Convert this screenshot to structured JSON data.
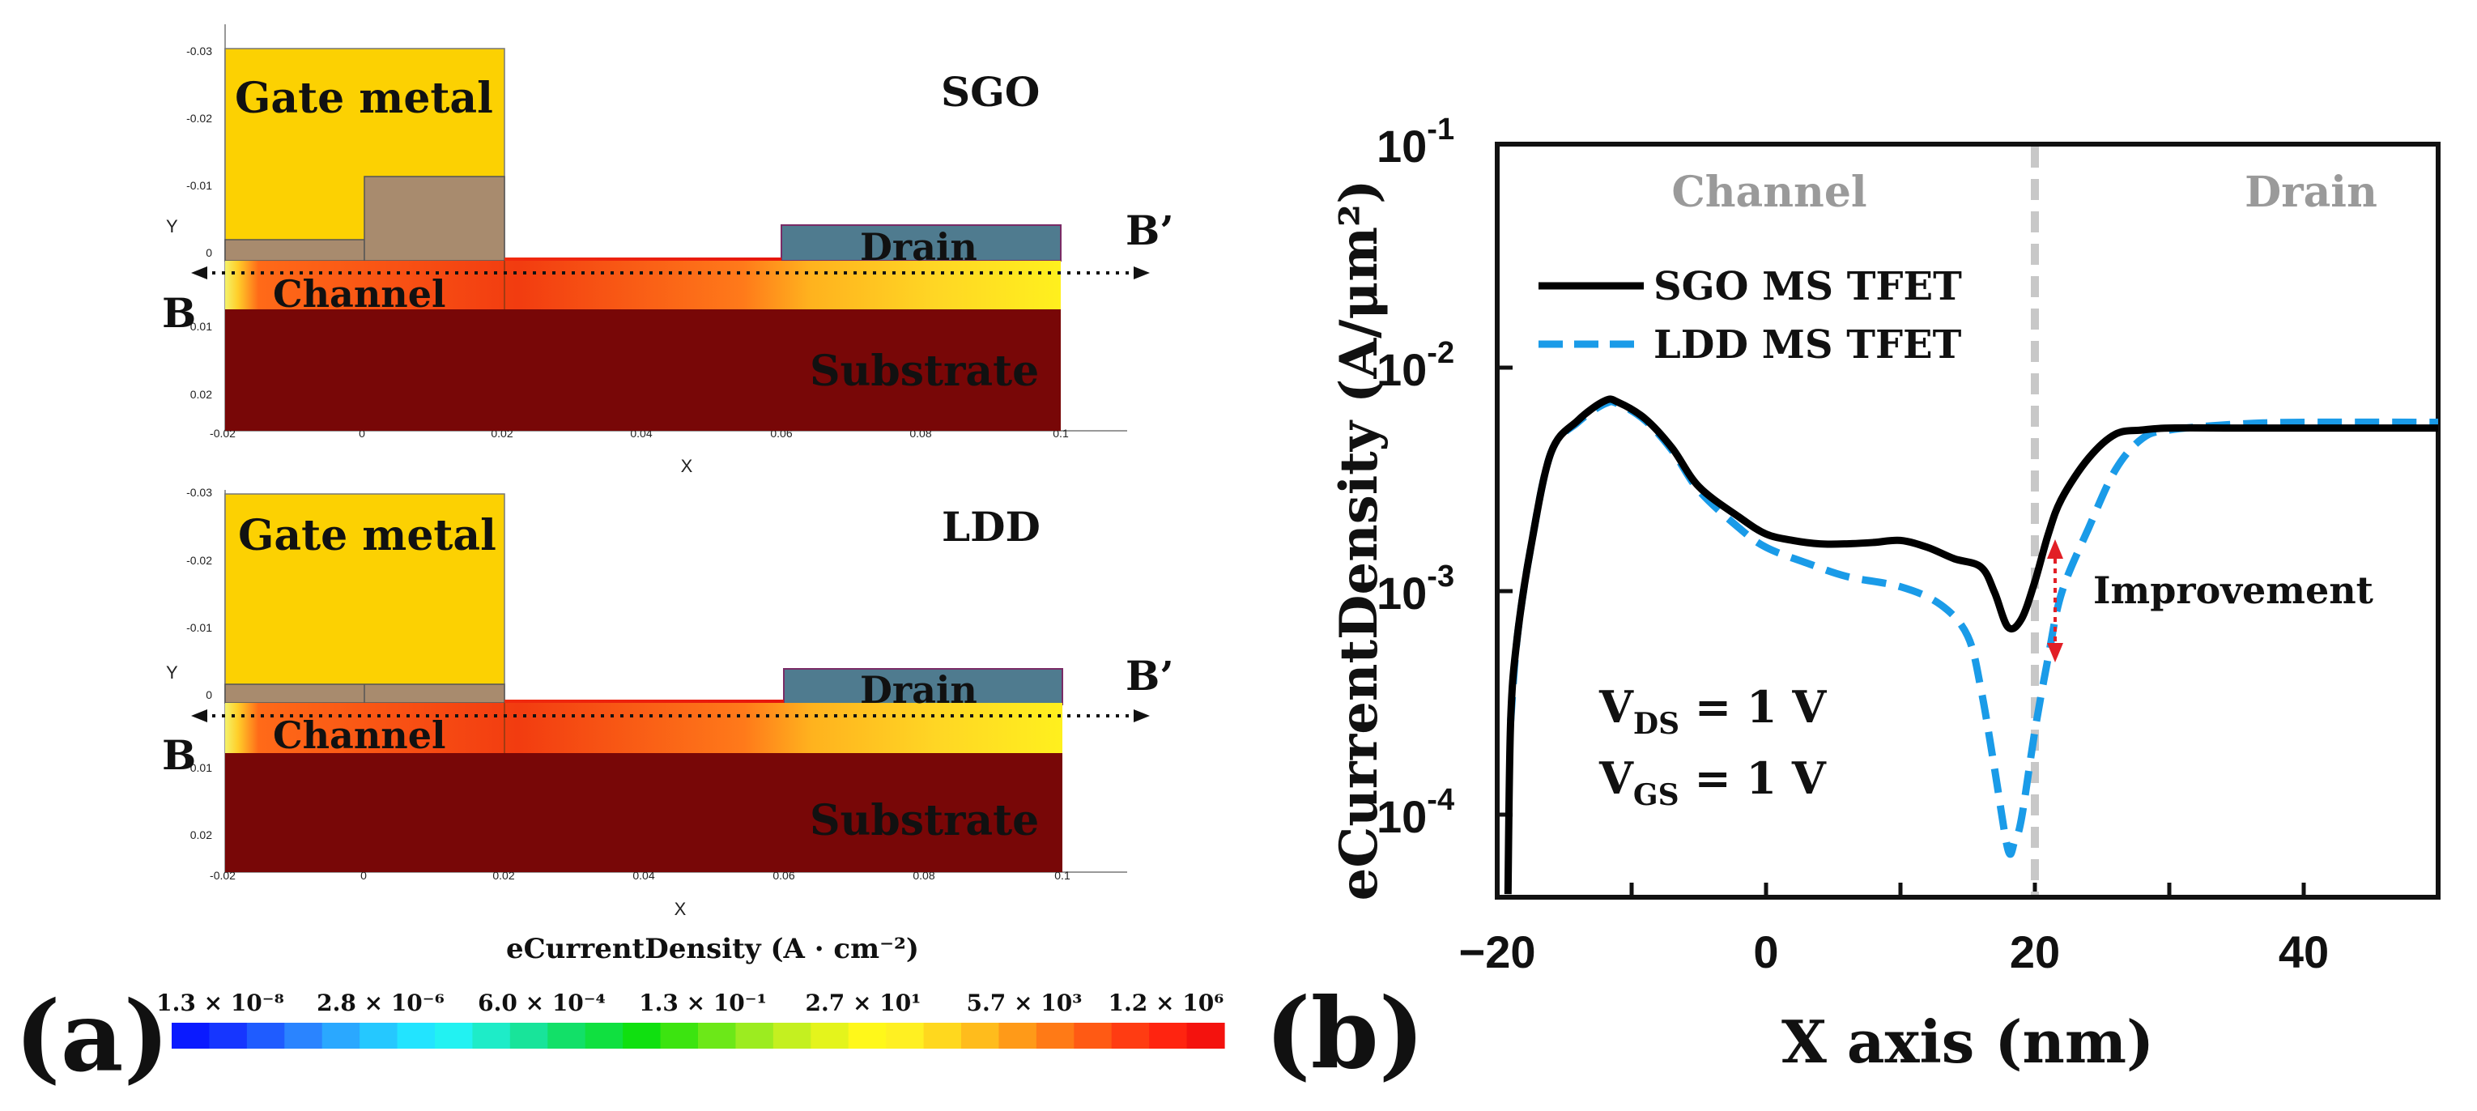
{
  "panel_a": {
    "label": "(a)",
    "top": {
      "title": "SGO",
      "gate_label": "Gate metal",
      "channel_label": "Channel",
      "drain_label": "Drain",
      "substrate_label": "Substrate",
      "cut_start": "B",
      "cut_end": "B’",
      "y_axis_label": "Y",
      "x_axis_label": "X",
      "y_ticks": [
        "-0.03",
        "-0.02",
        "-0.01",
        "0",
        "0.01",
        "0.02"
      ],
      "x_ticks": [
        "-0.02",
        "0",
        "0.02",
        "0.04",
        "0.06",
        "0.08",
        "0.1"
      ]
    },
    "bottom": {
      "title": "LDD",
      "gate_label": "Gate metal",
      "channel_label": "Channel",
      "drain_label": "Drain",
      "substrate_label": "Substrate",
      "cut_start": "B",
      "cut_end": "B’",
      "y_axis_label": "Y",
      "x_axis_label": "X",
      "y_ticks": [
        "-0.03",
        "-0.02",
        "-0.01",
        "0",
        "0.01",
        "0.02"
      ],
      "x_ticks": [
        "-0.02",
        "0",
        "0.02",
        "0.04",
        "0.06",
        "0.08",
        "0.1"
      ]
    },
    "colorbar": {
      "title": "eCurrentDensity (A · cm⁻²)",
      "tick_labels": [
        "1.3 × 10⁻⁸",
        "2.8 × 10⁻⁶",
        "6.0 × 10⁻⁴",
        "1.3 × 10⁻¹",
        "2.7 × 10¹",
        "5.7 × 10³",
        "1.2 × 10⁶"
      ],
      "colors": [
        "#0a1aff",
        "#1636ff",
        "#1f5cff",
        "#2a84ff",
        "#2aa8ff",
        "#25c8ff",
        "#22e4ff",
        "#22f2f2",
        "#1eecc8",
        "#18e49a",
        "#12e068",
        "#10e040",
        "#10e010",
        "#3ce410",
        "#6ce818",
        "#9cec20",
        "#c4f020",
        "#e4f41c",
        "#fff81a",
        "#fff022",
        "#ffd81e",
        "#ffbc1c",
        "#ff9a18",
        "#ff7a16",
        "#ff5a14",
        "#ff3c12",
        "#ff2410",
        "#f4120e"
      ]
    }
  },
  "panel_b": {
    "label": "(b)",
    "annotations": {
      "channel": "Channel",
      "drain": "Drain",
      "improvement": "Improvement"
    },
    "conditions": {
      "vds_main": "V",
      "vds_sub": "DS",
      "vds_value": " = 1 V",
      "vgs_main": "V",
      "vgs_sub": "GS",
      "vgs_value": " = 1 V"
    },
    "y_tick_exponents": [
      "-1",
      "-2",
      "-3",
      "-4"
    ],
    "x_tick_labels": [
      "−20",
      "0",
      "20",
      "40"
    ]
  },
  "chart_data": {
    "type": "line",
    "title": "",
    "xlabel": "X axis (nm)",
    "ylabel": "eCurrentDensity (A/μm²)",
    "xlim": [
      -20,
      50
    ],
    "ylim": [
      3e-05,
      0.1
    ],
    "yscale": "log",
    "x_ticks": [
      -20,
      0,
      20,
      40
    ],
    "y_ticks": [
      0.1,
      0.01,
      0.001,
      0.0001
    ],
    "legend": "upper-left",
    "vertical_marker_x": 20,
    "series": [
      {
        "name": "SGO MS TFET",
        "color": "#000000",
        "style": "solid",
        "points": [
          [
            -19.2,
            3.1e-05
          ],
          [
            -19,
            0.0002
          ],
          [
            -18.5,
            0.0005
          ],
          [
            -17.5,
            0.0013
          ],
          [
            -16,
            0.0036
          ],
          [
            -14,
            0.0051
          ],
          [
            -12,
            0.0063
          ],
          [
            -11,
            0.0062
          ],
          [
            -9,
            0.0052
          ],
          [
            -7,
            0.0038
          ],
          [
            -5,
            0.0025
          ],
          [
            -2,
            0.0018
          ],
          [
            0,
            0.0015
          ],
          [
            2,
            0.0014
          ],
          [
            4,
            0.00135
          ],
          [
            6,
            0.00135
          ],
          [
            8,
            0.00137
          ],
          [
            10,
            0.0014
          ],
          [
            12,
            0.0013
          ],
          [
            14,
            0.00115
          ],
          [
            16,
            0.00105
          ],
          [
            17,
            0.0008
          ],
          [
            18,
            0.00055
          ],
          [
            19,
            0.0006
          ],
          [
            20,
            0.0009
          ],
          [
            21,
            0.0015
          ],
          [
            22,
            0.0022
          ],
          [
            24,
            0.0034
          ],
          [
            26,
            0.0044
          ],
          [
            28,
            0.0046
          ],
          [
            30,
            0.0047
          ],
          [
            35,
            0.0047
          ],
          [
            40,
            0.0047
          ],
          [
            50,
            0.0047
          ]
        ]
      },
      {
        "name": "LDD MS TFET",
        "color": "#1a9be8",
        "style": "dashed",
        "points": [
          [
            -19,
            0.0002
          ],
          [
            -18.5,
            0.0005
          ],
          [
            -17.5,
            0.0013
          ],
          [
            -16,
            0.0036
          ],
          [
            -14,
            0.005
          ],
          [
            -12,
            0.0061
          ],
          [
            -11,
            0.0061
          ],
          [
            -9,
            0.0051
          ],
          [
            -7,
            0.0037
          ],
          [
            -5,
            0.0024
          ],
          [
            -2,
            0.0016
          ],
          [
            0,
            0.0013
          ],
          [
            3,
            0.0011
          ],
          [
            6,
            0.00095
          ],
          [
            10,
            0.00085
          ],
          [
            13,
            0.0007
          ],
          [
            15,
            0.0005
          ],
          [
            16,
            0.00028
          ],
          [
            17,
            0.00012
          ],
          [
            18,
            5e-05
          ],
          [
            18.5,
            5.5e-05
          ],
          [
            19,
            7e-05
          ],
          [
            20,
            0.00018
          ],
          [
            21,
            0.0004
          ],
          [
            22,
            0.0008
          ],
          [
            24,
            0.0016
          ],
          [
            26,
            0.003
          ],
          [
            28,
            0.0042
          ],
          [
            30,
            0.0046
          ],
          [
            35,
            0.0049
          ],
          [
            40,
            0.005
          ],
          [
            50,
            0.005
          ]
        ]
      }
    ]
  }
}
